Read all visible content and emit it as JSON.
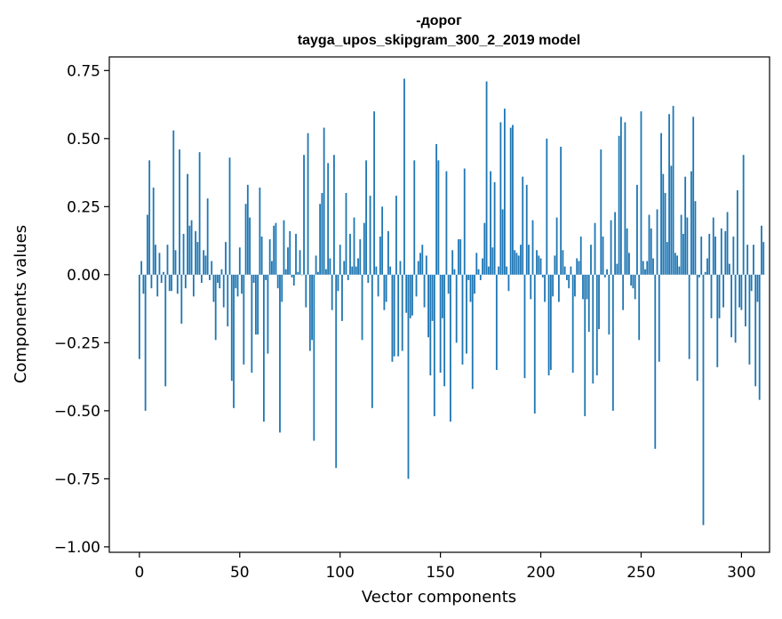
{
  "chart_data": {
    "type": "bar",
    "title_lines": [
      "-дорог",
      "tayga_upos_skipgram_300_2_2019 model"
    ],
    "xlabel": "Vector components",
    "ylabel": "Components values",
    "xlim": [
      -15,
      314
    ],
    "ylim": [
      -1.02,
      0.8
    ],
    "xticks": [
      0,
      50,
      100,
      150,
      200,
      250,
      300
    ],
    "xtick_labels": [
      "0",
      "50",
      "100",
      "150",
      "200",
      "250",
      "300"
    ],
    "yticks": [
      0.75,
      0.5,
      0.25,
      0.0,
      -0.25,
      -0.5,
      -0.75,
      -1.0
    ],
    "ytick_labels": [
      "0.75",
      "0.50",
      "0.25",
      "0.00",
      "−0.25",
      "−0.50",
      "−0.75",
      "−1.00"
    ],
    "bar_color": "#1f77b4",
    "values": [
      -0.31,
      0.05,
      -0.07,
      -0.5,
      0.22,
      0.42,
      -0.05,
      0.32,
      0.11,
      -0.08,
      0.08,
      -0.03,
      0.01,
      -0.41,
      0.11,
      -0.06,
      -0.06,
      0.53,
      0.09,
      -0.07,
      0.46,
      -0.18,
      0.15,
      -0.05,
      0.37,
      0.18,
      0.2,
      -0.08,
      0.16,
      0.12,
      0.45,
      -0.03,
      0.09,
      0.07,
      0.28,
      -0.02,
      0.05,
      -0.1,
      -0.24,
      -0.03,
      -0.05,
      0.02,
      -0.12,
      0.12,
      -0.19,
      0.43,
      -0.39,
      -0.49,
      -0.05,
      -0.08,
      0.1,
      -0.07,
      -0.33,
      0.26,
      0.33,
      0.21,
      -0.36,
      -0.03,
      -0.22,
      -0.22,
      0.32,
      0.14,
      -0.54,
      -0.02,
      -0.29,
      0.13,
      0.05,
      0.18,
      0.19,
      -0.05,
      -0.58,
      -0.1,
      0.2,
      0.02,
      0.1,
      0.16,
      -0.01,
      -0.04,
      0.15,
      0.01,
      0.09,
      0.0,
      0.44,
      -0.12,
      0.52,
      -0.28,
      -0.24,
      -0.61,
      0.07,
      0.01,
      0.26,
      0.3,
      0.54,
      0.02,
      0.41,
      0.06,
      -0.13,
      0.44,
      -0.71,
      -0.06,
      0.11,
      -0.17,
      0.05,
      0.3,
      -0.02,
      0.15,
      0.03,
      0.21,
      0.03,
      0.06,
      0.13,
      -0.24,
      0.19,
      0.42,
      -0.03,
      0.29,
      -0.49,
      0.6,
      0.03,
      -0.08,
      0.14,
      0.25,
      -0.13,
      -0.1,
      0.16,
      0.03,
      -0.32,
      -0.3,
      0.29,
      -0.3,
      0.05,
      -0.28,
      0.72,
      -0.14,
      -0.75,
      -0.16,
      -0.15,
      0.42,
      -0.08,
      0.05,
      0.08,
      0.11,
      -0.12,
      0.07,
      -0.23,
      -0.37,
      -0.17,
      -0.52,
      0.48,
      0.42,
      -0.36,
      -0.16,
      -0.41,
      0.38,
      -0.07,
      -0.54,
      0.09,
      0.02,
      -0.25,
      0.13,
      0.13,
      -0.33,
      0.39,
      -0.29,
      -0.02,
      -0.1,
      -0.42,
      -0.07,
      0.08,
      0.02,
      -0.02,
      0.06,
      0.19,
      0.71,
      0.03,
      0.38,
      0.1,
      0.34,
      -0.35,
      0.03,
      0.56,
      0.24,
      0.61,
      0.03,
      -0.06,
      0.54,
      0.55,
      0.09,
      0.08,
      0.07,
      0.11,
      0.36,
      -0.38,
      0.33,
      0.11,
      -0.09,
      0.2,
      -0.51,
      0.09,
      0.07,
      0.06,
      -0.01,
      -0.1,
      0.5,
      -0.37,
      -0.35,
      -0.08,
      0.07,
      0.21,
      -0.1,
      0.47,
      0.09,
      0.03,
      -0.02,
      -0.05,
      0.03,
      -0.36,
      -0.08,
      0.06,
      0.05,
      0.14,
      -0.09,
      -0.52,
      -0.09,
      -0.21,
      0.11,
      -0.4,
      0.19,
      -0.37,
      -0.2,
      0.46,
      0.14,
      -0.01,
      0.02,
      -0.22,
      0.2,
      -0.5,
      0.23,
      0.04,
      0.51,
      0.58,
      -0.13,
      0.56,
      0.17,
      0.08,
      -0.04,
      -0.05,
      -0.09,
      0.33,
      -0.24,
      0.6,
      0.05,
      0.02,
      0.05,
      0.22,
      0.17,
      0.06,
      -0.64,
      0.24,
      -0.32,
      0.52,
      0.37,
      0.3,
      0.12,
      0.59,
      0.4,
      0.62,
      0.08,
      0.07,
      0.03,
      0.22,
      0.15,
      0.36,
      0.21,
      -0.31,
      0.38,
      0.58,
      0.27,
      -0.39,
      -0.01,
      0.14,
      -0.92,
      0.01,
      0.06,
      0.15,
      -0.16,
      0.21,
      0.14,
      -0.34,
      -0.16,
      0.17,
      -0.12,
      0.16,
      0.23,
      0.04,
      -0.23,
      0.14,
      -0.25,
      0.31,
      -0.12,
      -0.13,
      0.44,
      -0.19,
      0.11,
      -0.33,
      -0.06,
      0.11,
      -0.41,
      -0.1,
      -0.46,
      0.18,
      0.12
    ]
  }
}
